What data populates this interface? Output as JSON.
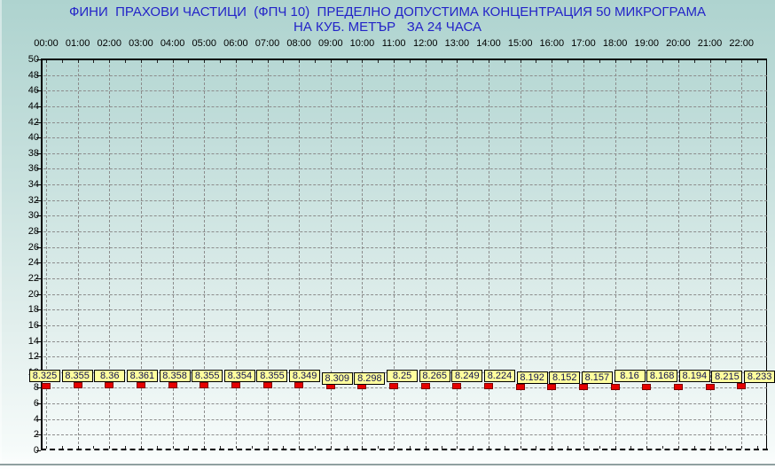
{
  "title": {
    "line1": "ФИНИ  ПРАХОВИ ЧАСТИЦИ  (ФПЧ 10)  ПРЕДЕЛНО ДОПУСТИМА КОНЦЕНТРАЦИЯ 50 МИКРОГРАМА",
    "line2": "НА КУБ. МЕТЪР   ЗА 24 ЧАСА"
  },
  "chart_data": {
    "type": "line",
    "title": "ФИНИ ПРАХОВИ ЧАСТИЦИ (ФПЧ 10) ПРЕДЕЛНО ДОПУСТИМА КОНЦЕНТРАЦИЯ 50 МИКРОГРАМА НА КУБ. МЕТЪР ЗА 24 ЧАСА",
    "categories": [
      "00:00",
      "01:00",
      "02:00",
      "03:00",
      "04:00",
      "05:00",
      "06:00",
      "07:00",
      "08:00",
      "09:00",
      "10:00",
      "11:00",
      "12:00",
      "13:00",
      "14:00",
      "15:00",
      "16:00",
      "17:00",
      "18:00",
      "19:00",
      "20:00",
      "21:00",
      "22:00"
    ],
    "values": [
      8.325,
      8.355,
      8.36,
      8.361,
      8.358,
      8.355,
      8.354,
      8.355,
      8.349,
      8.309,
      8.298,
      8.25,
      8.265,
      8.249,
      8.224,
      8.192,
      8.152,
      8.157,
      8.16,
      8.168,
      8.194,
      8.215,
      8.233
    ],
    "value_labels": [
      "8.325",
      "8.355",
      "8.36",
      "8.361",
      "8.358",
      "8.355",
      "8.354",
      "8.355",
      "8.349",
      "8.309",
      "8.298",
      "8.25",
      "8.265",
      "8.249",
      "8.224",
      "8.192",
      "8.152",
      "8.157",
      "8.16",
      "8.168",
      "8.194",
      "8.215",
      "8.233"
    ],
    "yticks": [
      0,
      2,
      4,
      6,
      8,
      10,
      12,
      14,
      16,
      18,
      20,
      22,
      24,
      26,
      28,
      30,
      32,
      34,
      36,
      38,
      40,
      42,
      44,
      46,
      48,
      50
    ],
    "ylim": [
      0,
      50
    ],
    "xlabel": "",
    "ylabel": "",
    "grid": "dashed horizontal and vertical",
    "legend_position": "none",
    "marker_style": "red filled square with data label in yellow box"
  },
  "colors": {
    "title_text": "#2323c8",
    "background_top": "#aed3cf",
    "background_bottom": "#fdfefe",
    "grid": "#8c8c8c",
    "axis": "#000000",
    "marker_fill": "#e60000",
    "marker_border": "#7e0000",
    "value_box_bg": "#ffff9e",
    "value_box_text": "#101050",
    "bottom_rule": "#8fa0a0"
  }
}
